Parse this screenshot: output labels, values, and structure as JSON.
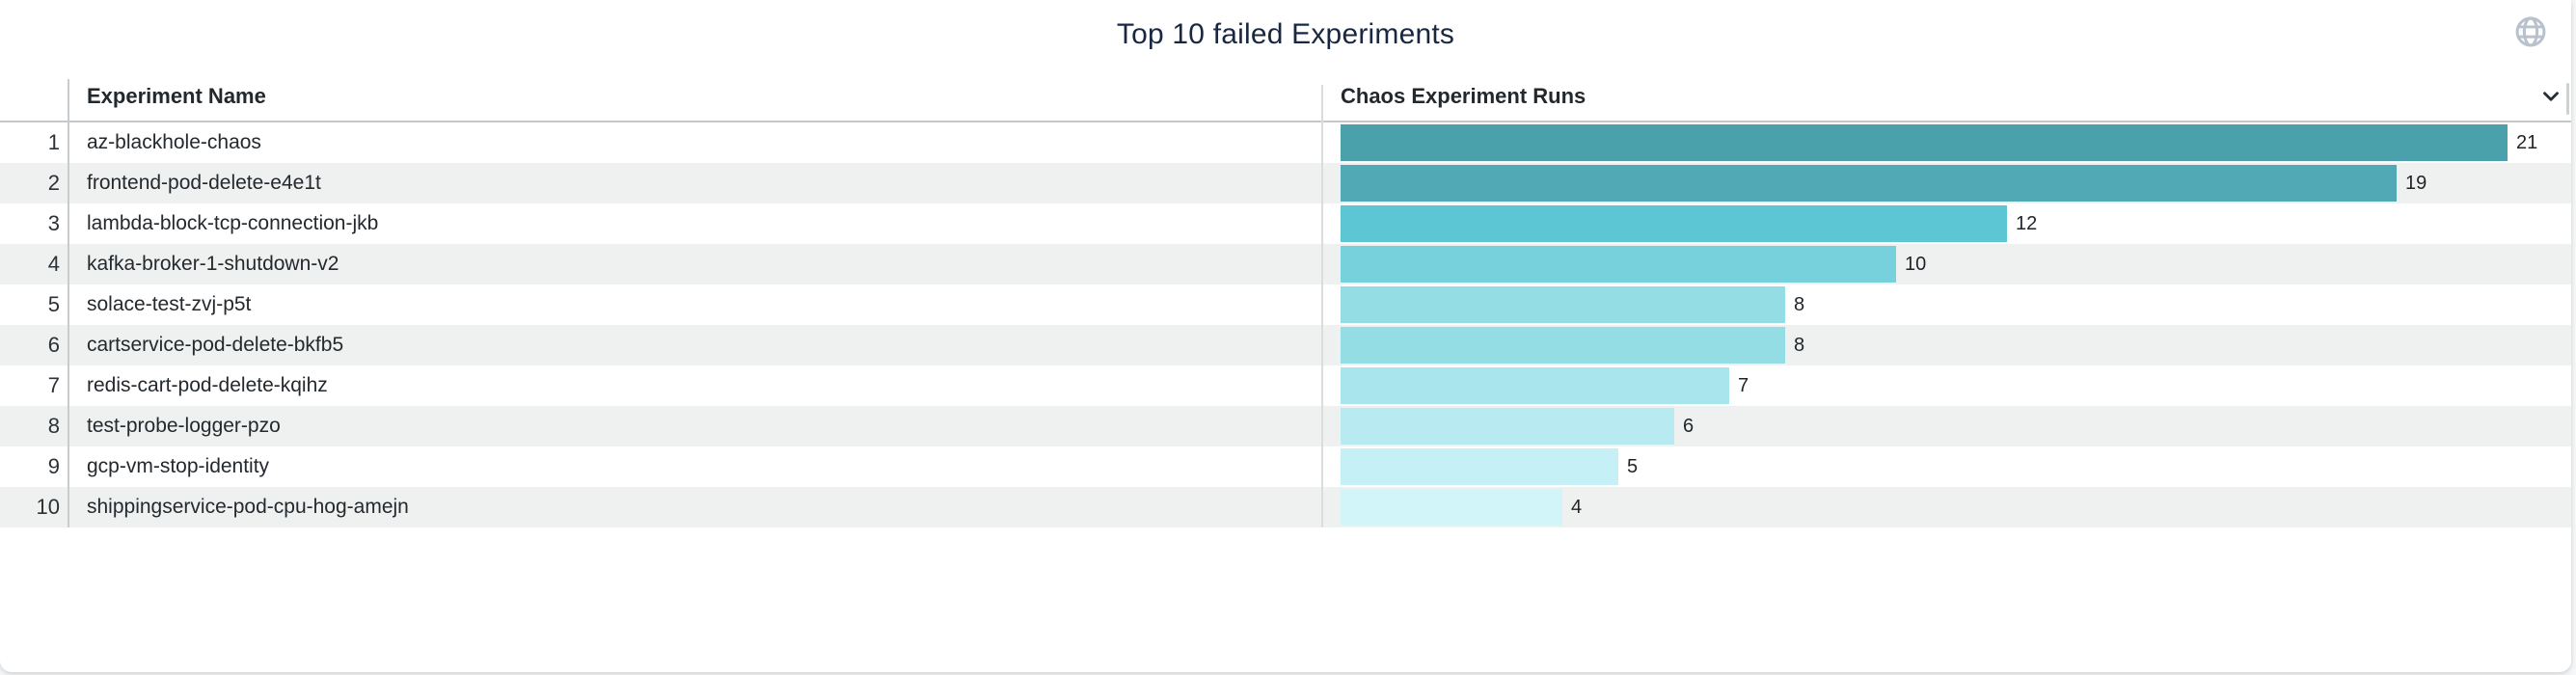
{
  "title": "Top 10 failed Experiments",
  "panel": {
    "globe_icon": "globe-icon",
    "collapse_icon": "chevron-down-icon",
    "title_color": "#1a2740",
    "stripe_color": "#eff1f1",
    "accent_color": "#4aa0ab"
  },
  "table": {
    "columns": [
      {
        "label": "Experiment Name"
      },
      {
        "label": "Chaos Experiment Runs"
      }
    ],
    "rows": [
      {
        "rank": "1",
        "name": "az-blackhole-chaos",
        "runs": 21,
        "color": "#4aa0ab"
      },
      {
        "rank": "2",
        "name": "frontend-pod-delete-e4e1t",
        "runs": 19,
        "color": "#50a9b4"
      },
      {
        "rank": "3",
        "name": "lambda-block-tcp-connection-jkb",
        "runs": 12,
        "color": "#5cc6d4"
      },
      {
        "rank": "4",
        "name": "kafka-broker-1-shutdown-v2",
        "runs": 10,
        "color": "#76d1dd"
      },
      {
        "rank": "5",
        "name": "solace-test-zvj-p5t",
        "runs": 8,
        "color": "#94dde4"
      },
      {
        "rank": "6",
        "name": "cartservice-pod-delete-bkfb5",
        "runs": 8,
        "color": "#94dde4"
      },
      {
        "rank": "7",
        "name": "redis-cart-pod-delete-kqihz",
        "runs": 7,
        "color": "#a9e5ec"
      },
      {
        "rank": "8",
        "name": "test-probe-logger-pzo",
        "runs": 6,
        "color": "#b7ebf1"
      },
      {
        "rank": "9",
        "name": "gcp-vm-stop-identity",
        "runs": 5,
        "color": "#c5f0f5"
      },
      {
        "rank": "10",
        "name": "shippingservice-pod-cpu-hog-amejn",
        "runs": 4,
        "color": "#d2f5f9"
      }
    ]
  },
  "chart_data": {
    "type": "bar",
    "orientation": "horizontal",
    "title": "Top 10 failed Experiments",
    "categories": [
      "az-blackhole-chaos",
      "frontend-pod-delete-e4e1t",
      "lambda-block-tcp-connection-jkb",
      "kafka-broker-1-shutdown-v2",
      "solace-test-zvj-p5t",
      "cartservice-pod-delete-bkfb5",
      "redis-cart-pod-delete-kqihz",
      "test-probe-logger-pzo",
      "gcp-vm-stop-identity",
      "shippingservice-pod-cpu-hog-amejn"
    ],
    "values": [
      21,
      19,
      12,
      10,
      8,
      8,
      7,
      6,
      5,
      4
    ],
    "xlabel": "Chaos Experiment Runs",
    "ylabel": "Experiment Name",
    "xlim": [
      0,
      21
    ],
    "value_labels_shown": true,
    "bar_colors": [
      "#4aa0ab",
      "#50a9b4",
      "#5cc6d4",
      "#76d1dd",
      "#94dde4",
      "#94dde4",
      "#a9e5ec",
      "#b7ebf1",
      "#c5f0f5",
      "#d2f5f9"
    ],
    "legend": "none",
    "grid": "off"
  }
}
